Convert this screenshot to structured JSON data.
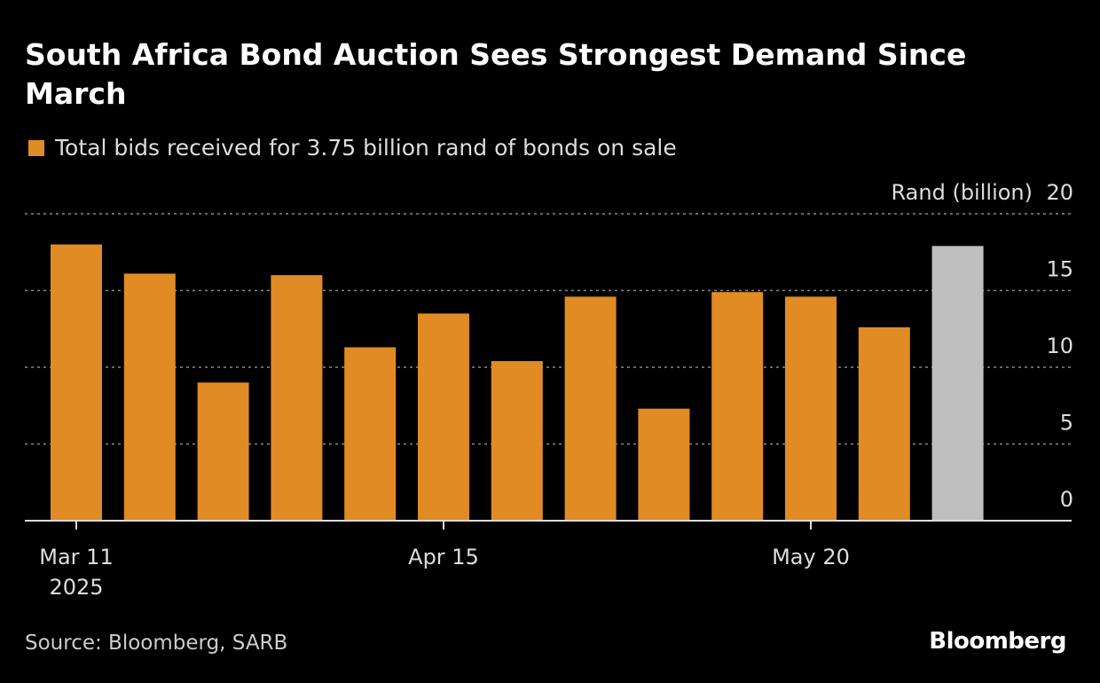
{
  "title": "South Africa Bond Auction Sees Strongest Demand Since March",
  "source": "Source: Bloomberg, SARB",
  "logo": "Bloomberg",
  "colors": {
    "bar": "#e08b24",
    "highlight": "#bfbfbf",
    "background": "#000000",
    "grid": "#888888"
  },
  "chart_data": {
    "type": "bar",
    "title": "South Africa Bond Auction Sees Strongest Demand Since March",
    "legend": [
      "Total bids received for 3.75 billion rand of bonds on sale"
    ],
    "ylabel": "Rand (billion)",
    "ylim": [
      0,
      20
    ],
    "yticks": [
      0,
      5,
      10,
      15,
      20
    ],
    "y_axis_position": "right",
    "grid": true,
    "categories": [
      "2025-03-11",
      "2025-03-18",
      "2025-03-25",
      "2025-04-01",
      "2025-04-08",
      "2025-04-15",
      "2025-04-22",
      "2025-04-29",
      "2025-05-06",
      "2025-05-13",
      "2025-05-20",
      "2025-05-27",
      "2025-06-03"
    ],
    "values": [
      18.0,
      16.1,
      9.0,
      16.0,
      11.3,
      13.5,
      10.4,
      14.6,
      7.3,
      14.9,
      14.6,
      12.6,
      17.9
    ],
    "highlight_index": 12,
    "xtick_labels": [
      {
        "index": 0,
        "label": "Mar 11",
        "sublabel": "2025"
      },
      {
        "index": 5,
        "label": "Apr 15"
      },
      {
        "index": 10,
        "label": "May 20"
      }
    ]
  }
}
